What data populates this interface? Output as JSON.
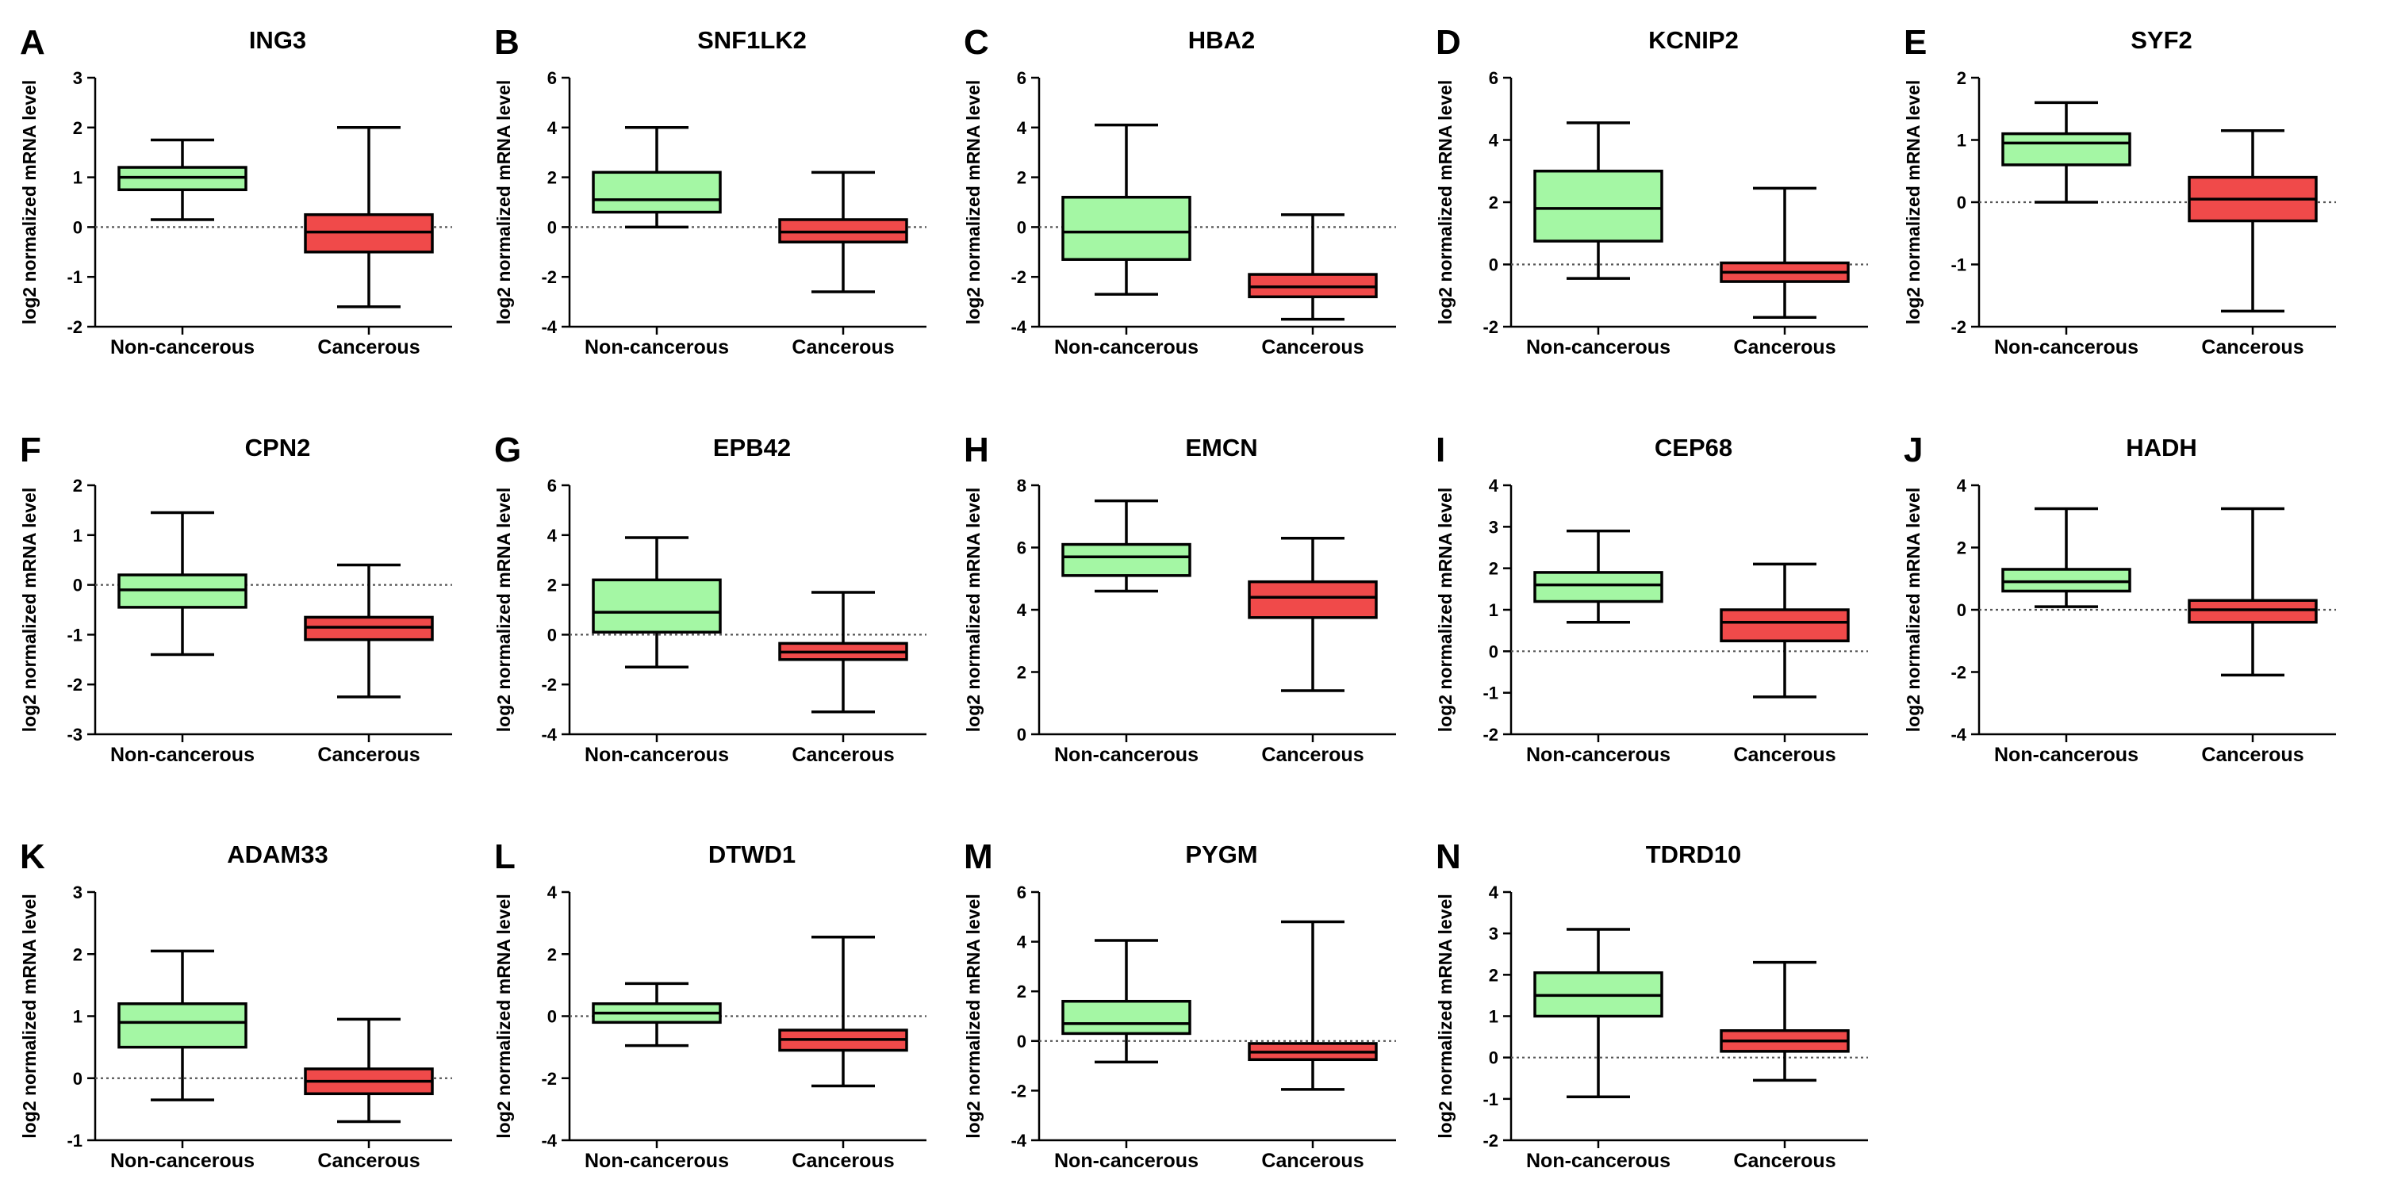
{
  "figure": {
    "ylabel": "log2 normalized mRNA level",
    "colors": {
      "non_cancerous": "#a4f7a4",
      "cancerous": "#f04a4a"
    }
  },
  "chart_data": [
    {
      "type": "box",
      "panel": "A",
      "title": "ING3",
      "categories": [
        "Non-cancerous",
        "Cancerous"
      ],
      "ylabel": "log2 normalized mRNA level",
      "ylim": [
        -2,
        3
      ],
      "yticks": [
        -2,
        -1,
        0,
        1,
        2,
        3
      ],
      "series": [
        {
          "name": "Non-cancerous",
          "min": 0.15,
          "q1": 0.75,
          "median": 1.0,
          "q3": 1.2,
          "max": 1.75
        },
        {
          "name": "Cancerous",
          "min": -1.6,
          "q1": -0.5,
          "median": -0.1,
          "q3": 0.25,
          "max": 2.0
        }
      ]
    },
    {
      "type": "box",
      "panel": "B",
      "title": "SNF1LK2",
      "categories": [
        "Non-cancerous",
        "Cancerous"
      ],
      "ylabel": "log2 normalized mRNA level",
      "ylim": [
        -4,
        6
      ],
      "yticks": [
        -4,
        -2,
        0,
        2,
        4,
        6
      ],
      "series": [
        {
          "name": "Non-cancerous",
          "min": 0.0,
          "q1": 0.6,
          "median": 1.1,
          "q3": 2.2,
          "max": 4.0
        },
        {
          "name": "Cancerous",
          "min": -2.6,
          "q1": -0.6,
          "median": -0.2,
          "q3": 0.3,
          "max": 2.2
        }
      ]
    },
    {
      "type": "box",
      "panel": "C",
      "title": "HBA2",
      "categories": [
        "Non-cancerous",
        "Cancerous"
      ],
      "ylabel": "log2 normalized mRNA level",
      "ylim": [
        -4,
        6
      ],
      "yticks": [
        -4,
        -2,
        0,
        2,
        4,
        6
      ],
      "series": [
        {
          "name": "Non-cancerous",
          "min": -2.7,
          "q1": -1.3,
          "median": -0.2,
          "q3": 1.2,
          "max": 4.1
        },
        {
          "name": "Cancerous",
          "min": -3.7,
          "q1": -2.8,
          "median": -2.4,
          "q3": -1.9,
          "max": 0.5
        }
      ]
    },
    {
      "type": "box",
      "panel": "D",
      "title": "KCNIP2",
      "categories": [
        "Non-cancerous",
        "Cancerous"
      ],
      "ylabel": "log2 normalized mRNA level",
      "ylim": [
        -2,
        6
      ],
      "yticks": [
        -2,
        0,
        2,
        4,
        6
      ],
      "series": [
        {
          "name": "Non-cancerous",
          "min": -0.45,
          "q1": 0.75,
          "median": 1.8,
          "q3": 3.0,
          "max": 4.55
        },
        {
          "name": "Cancerous",
          "min": -1.7,
          "q1": -0.55,
          "median": -0.25,
          "q3": 0.05,
          "max": 2.45
        }
      ]
    },
    {
      "type": "box",
      "panel": "E",
      "title": "SYF2",
      "categories": [
        "Non-cancerous",
        "Cancerous"
      ],
      "ylabel": "log2 normalized mRNA level",
      "ylim": [
        -2,
        2
      ],
      "yticks": [
        -2,
        -1,
        0,
        1,
        2
      ],
      "series": [
        {
          "name": "Non-cancerous",
          "min": 0.0,
          "q1": 0.6,
          "median": 0.95,
          "q3": 1.1,
          "max": 1.6
        },
        {
          "name": "Cancerous",
          "min": -1.75,
          "q1": -0.3,
          "median": 0.05,
          "q3": 0.4,
          "max": 1.15
        }
      ]
    },
    {
      "type": "box",
      "panel": "F",
      "title": "CPN2",
      "categories": [
        "Non-cancerous",
        "Cancerous"
      ],
      "ylabel": "log2 normalized mRNA level",
      "ylim": [
        -3,
        2
      ],
      "yticks": [
        -3,
        -2,
        -1,
        0,
        1,
        2
      ],
      "series": [
        {
          "name": "Non-cancerous",
          "min": -1.4,
          "q1": -0.45,
          "median": -0.1,
          "q3": 0.2,
          "max": 1.45
        },
        {
          "name": "Cancerous",
          "min": -2.25,
          "q1": -1.1,
          "median": -0.85,
          "q3": -0.65,
          "max": 0.4
        }
      ]
    },
    {
      "type": "box",
      "panel": "G",
      "title": "EPB42",
      "categories": [
        "Non-cancerous",
        "Cancerous"
      ],
      "ylabel": "log2 normalized mRNA level",
      "ylim": [
        -4,
        6
      ],
      "yticks": [
        -4,
        -2,
        0,
        2,
        4,
        6
      ],
      "series": [
        {
          "name": "Non-cancerous",
          "min": -1.3,
          "q1": 0.1,
          "median": 0.9,
          "q3": 2.2,
          "max": 3.9
        },
        {
          "name": "Cancerous",
          "min": -3.1,
          "q1": -1.0,
          "median": -0.7,
          "q3": -0.35,
          "max": 1.7
        }
      ]
    },
    {
      "type": "box",
      "panel": "H",
      "title": "EMCN",
      "categories": [
        "Non-cancerous",
        "Cancerous"
      ],
      "ylabel": "log2 normalized mRNA level",
      "ylim": [
        0,
        8
      ],
      "yticks": [
        0,
        2,
        4,
        6,
        8
      ],
      "series": [
        {
          "name": "Non-cancerous",
          "min": 4.6,
          "q1": 5.1,
          "median": 5.7,
          "q3": 6.1,
          "max": 7.5
        },
        {
          "name": "Cancerous",
          "min": 1.4,
          "q1": 3.75,
          "median": 4.4,
          "q3": 4.9,
          "max": 6.3
        }
      ]
    },
    {
      "type": "box",
      "panel": "I",
      "title": "CEP68",
      "categories": [
        "Non-cancerous",
        "Cancerous"
      ],
      "ylabel": "log2 normalized mRNA level",
      "ylim": [
        -2,
        4
      ],
      "yticks": [
        -2,
        -1,
        0,
        1,
        2,
        3,
        4
      ],
      "series": [
        {
          "name": "Non-cancerous",
          "min": 0.7,
          "q1": 1.2,
          "median": 1.6,
          "q3": 1.9,
          "max": 2.9
        },
        {
          "name": "Cancerous",
          "min": -1.1,
          "q1": 0.25,
          "median": 0.7,
          "q3": 1.0,
          "max": 2.1
        }
      ]
    },
    {
      "type": "box",
      "panel": "J",
      "title": "HADH",
      "categories": [
        "Non-cancerous",
        "Cancerous"
      ],
      "ylabel": "log2 normalized mRNA level",
      "ylim": [
        -4,
        4
      ],
      "yticks": [
        -4,
        -2,
        0,
        2,
        4
      ],
      "series": [
        {
          "name": "Non-cancerous",
          "min": 0.1,
          "q1": 0.6,
          "median": 0.9,
          "q3": 1.3,
          "max": 3.25
        },
        {
          "name": "Cancerous",
          "min": -2.1,
          "q1": -0.4,
          "median": 0.0,
          "q3": 0.3,
          "max": 3.25
        }
      ]
    },
    {
      "type": "box",
      "panel": "K",
      "title": "ADAM33",
      "categories": [
        "Non-cancerous",
        "Cancerous"
      ],
      "ylabel": "log2 normalized mRNA level",
      "ylim": [
        -1,
        3
      ],
      "yticks": [
        -1,
        0,
        1,
        2,
        3
      ],
      "series": [
        {
          "name": "Non-cancerous",
          "min": -0.35,
          "q1": 0.5,
          "median": 0.9,
          "q3": 1.2,
          "max": 2.05
        },
        {
          "name": "Cancerous",
          "min": -0.7,
          "q1": -0.25,
          "median": -0.05,
          "q3": 0.15,
          "max": 0.95
        }
      ]
    },
    {
      "type": "box",
      "panel": "L",
      "title": "DTWD1",
      "categories": [
        "Non-cancerous",
        "Cancerous"
      ],
      "ylabel": "log2 normalized mRNA level",
      "ylim": [
        -4,
        4
      ],
      "yticks": [
        -4,
        -2,
        0,
        2,
        4
      ],
      "series": [
        {
          "name": "Non-cancerous",
          "min": -0.95,
          "q1": -0.2,
          "median": 0.1,
          "q3": 0.4,
          "max": 1.05
        },
        {
          "name": "Cancerous",
          "min": -2.25,
          "q1": -1.1,
          "median": -0.75,
          "q3": -0.45,
          "max": 2.55
        }
      ]
    },
    {
      "type": "box",
      "panel": "M",
      "title": "PYGM",
      "categories": [
        "Non-cancerous",
        "Cancerous"
      ],
      "ylabel": "log2 normalized mRNA level",
      "ylim": [
        -4,
        6
      ],
      "yticks": [
        -4,
        -2,
        0,
        2,
        4,
        6
      ],
      "series": [
        {
          "name": "Non-cancerous",
          "min": -0.85,
          "q1": 0.3,
          "median": 0.7,
          "q3": 1.6,
          "max": 4.05
        },
        {
          "name": "Cancerous",
          "min": -1.95,
          "q1": -0.75,
          "median": -0.45,
          "q3": -0.1,
          "max": 4.8
        }
      ]
    },
    {
      "type": "box",
      "panel": "N",
      "title": "TDRD10",
      "categories": [
        "Non-cancerous",
        "Cancerous"
      ],
      "ylabel": "log2 normalized mRNA level",
      "ylim": [
        -2,
        4
      ],
      "yticks": [
        -2,
        -1,
        0,
        1,
        2,
        3,
        4
      ],
      "series": [
        {
          "name": "Non-cancerous",
          "min": -0.95,
          "q1": 1.0,
          "median": 1.5,
          "q3": 2.05,
          "max": 3.1
        },
        {
          "name": "Cancerous",
          "min": -0.55,
          "q1": 0.15,
          "median": 0.4,
          "q3": 0.65,
          "max": 2.3
        }
      ]
    }
  ]
}
